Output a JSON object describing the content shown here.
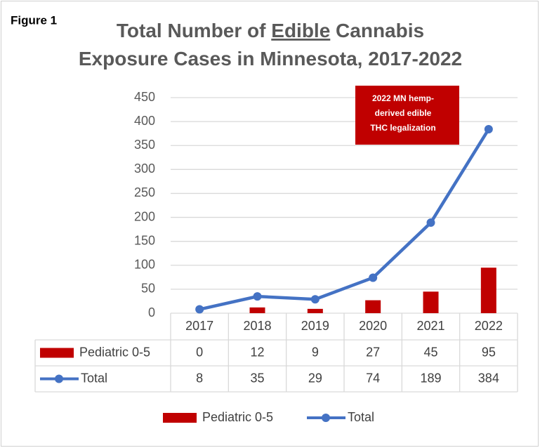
{
  "chart_data": {
    "type": "bar_line_table",
    "figure_label": "Figure 1",
    "title": [
      [
        {
          "text": "Total Number of "
        },
        {
          "text": "Edible",
          "underline": true
        },
        {
          "text": " Cannabis"
        }
      ],
      [
        {
          "text": "Exposure Cases in Minnesota, 2017-2022"
        }
      ]
    ],
    "annotation": {
      "lines": [
        "2022 MN hemp-",
        "derived edible",
        "THC legalization"
      ],
      "color": "#c00000"
    },
    "categories": [
      "2017",
      "2018",
      "2019",
      "2020",
      "2021",
      "2022"
    ],
    "series": [
      {
        "name": "Pediatric 0-5",
        "kind": "bar",
        "color": "#c00000",
        "values": [
          0,
          12,
          9,
          27,
          45,
          95
        ]
      },
      {
        "name": "Total",
        "kind": "line",
        "color": "#4472c4",
        "values": [
          8,
          35,
          29,
          74,
          189,
          384
        ]
      }
    ],
    "ylim": [
      0,
      450
    ],
    "yticks": [
      0,
      50,
      100,
      150,
      200,
      250,
      300,
      350,
      400,
      450
    ],
    "grid": true
  }
}
